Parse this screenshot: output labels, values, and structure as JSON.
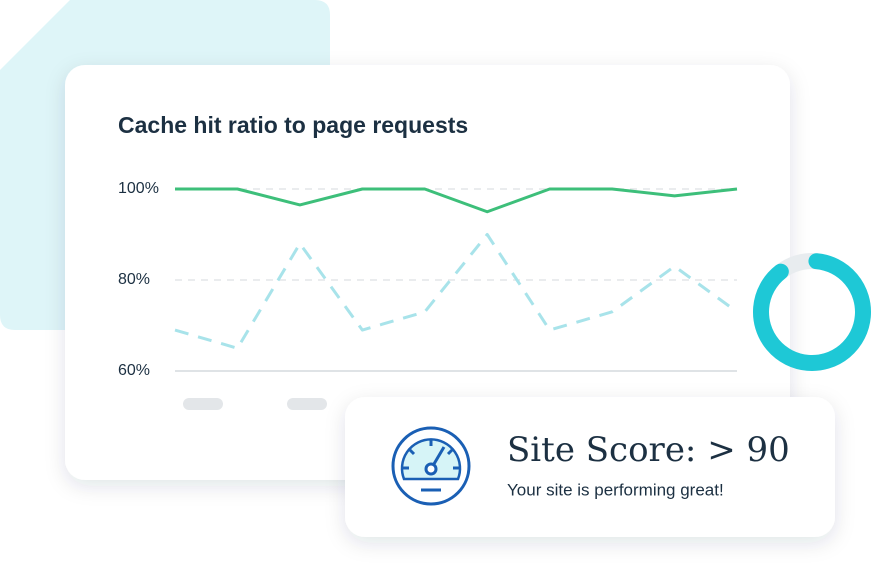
{
  "chart_data": {
    "type": "line",
    "title": "Cache hit ratio to page requests",
    "series": [
      {
        "color": "#3dbf7a",
        "dash": false,
        "values": [
          100,
          100,
          96.5,
          100,
          100,
          95,
          100,
          100,
          98.5,
          100
        ]
      },
      {
        "color": "#a8e3ea",
        "dash": true,
        "values": [
          69,
          65,
          88,
          69,
          73,
          90,
          69,
          73,
          83,
          73
        ]
      }
    ],
    "ylim": [
      60,
      100
    ],
    "yticks": [
      {
        "value": 60,
        "label": "60%"
      },
      {
        "value": 80,
        "label": "80%"
      },
      {
        "value": 100,
        "label": "100%"
      }
    ],
    "grid": true
  },
  "donut": {
    "value": 88,
    "color": "#1ec8d6",
    "track_color": "#e8ecef"
  },
  "score_card": {
    "title": "Site Score: > 90",
    "subtitle": "Your site is performing great!"
  }
}
